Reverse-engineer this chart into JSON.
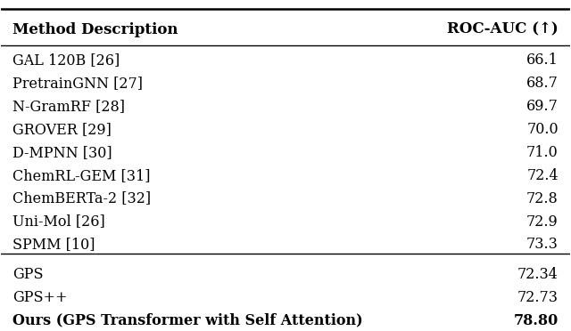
{
  "header": [
    "Method Description",
    "ROC-AUC (↑)"
  ],
  "rows_top": [
    [
      "GAL 120B [26]",
      "66.1"
    ],
    [
      "PretrainGNN [27]",
      "68.7"
    ],
    [
      "N-GramRF [28]",
      "69.7"
    ],
    [
      "GROVER [29]",
      "70.0"
    ],
    [
      "D-MPNN [30]",
      "71.0"
    ],
    [
      "ChemRL-GEM [31]",
      "72.4"
    ],
    [
      "ChemBERTa-2 [32]",
      "72.8"
    ],
    [
      "Uni-Mol [26]",
      "72.9"
    ],
    [
      "SPMM [10]",
      "73.3"
    ]
  ],
  "rows_bottom": [
    [
      "GPS",
      "72.34",
      false
    ],
    [
      "GPS++",
      "72.73",
      false
    ],
    [
      "Ours (GPS Transformer with Self Attention)",
      "78.80",
      true
    ]
  ],
  "bg_color": "#ffffff",
  "text_color": "#000000",
  "line_color": "#000000",
  "header_fontsize": 12,
  "body_fontsize": 11.5
}
